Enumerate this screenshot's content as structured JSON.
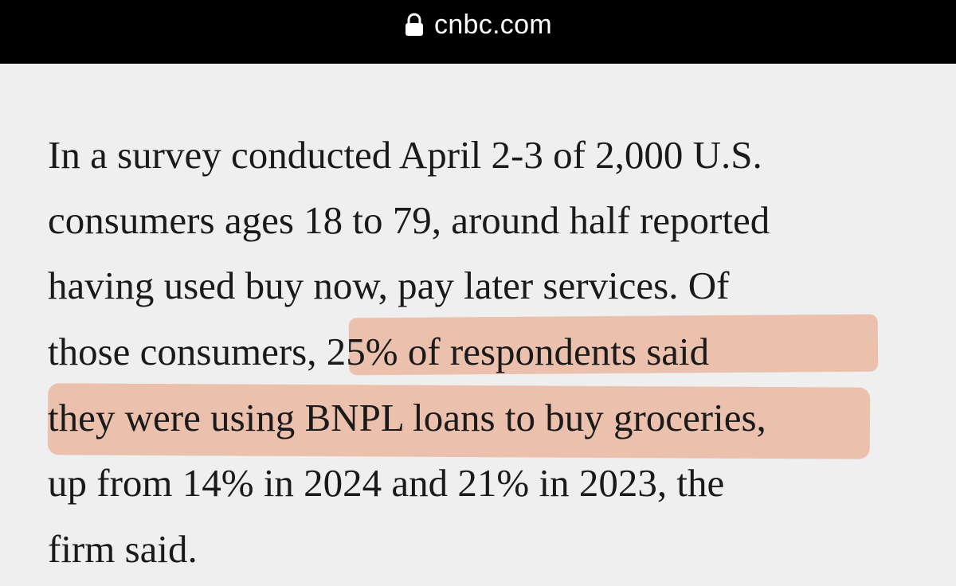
{
  "browser": {
    "domain": "cnbc.com",
    "lock_icon": "lock-icon"
  },
  "article": {
    "lines": [
      "In a survey conducted April 2-3 of 2,000 U.S.",
      "consumers ages 18 to 79, around half reported",
      "having used buy now, pay later services. Of",
      "those consumers, 25% of respondents said",
      "they were using BNPL loans to buy groceries,",
      "up from 14% in 2024 and 21% in 2023, the",
      "firm said."
    ]
  },
  "colors": {
    "bar_background": "#000000",
    "page_background": "#efefef",
    "text": "#1a1a1a",
    "highlight": "#e8a080"
  }
}
